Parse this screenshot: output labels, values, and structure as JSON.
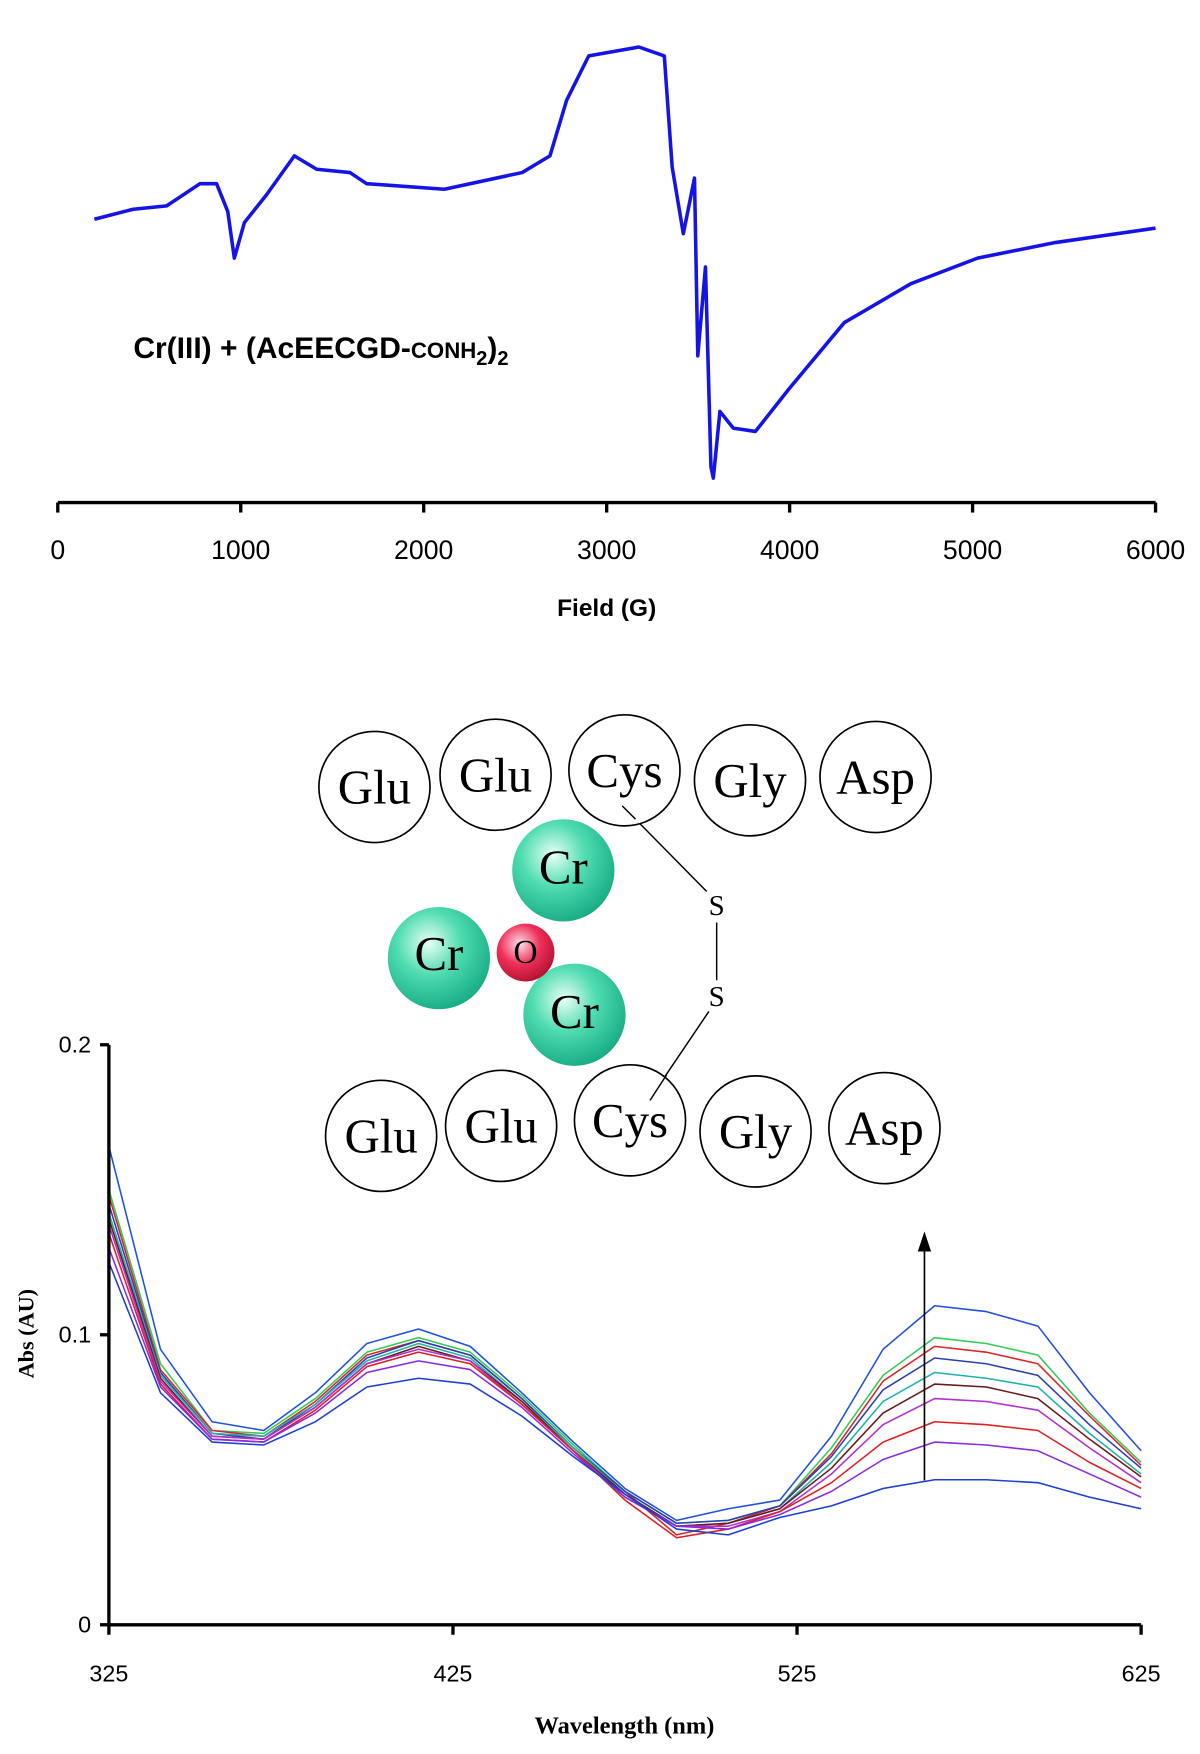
{
  "chart_data": [
    {
      "type": "line",
      "annotation": [
        "Cr(III) + (AcEECGD-",
        "CONH",
        "2",
        ")",
        "2"
      ],
      "xlabel": "Field (G)",
      "x": [
        200,
        413,
        595,
        777,
        868,
        929,
        965,
        1020,
        1141,
        1293,
        1415,
        1597,
        1688,
        2113,
        2538,
        2690,
        2781,
        2902,
        3176,
        3315,
        3358,
        3419,
        3480,
        3498,
        3540,
        3570,
        3583,
        3619,
        3692,
        3813,
        3995,
        4299,
        4663,
        5027,
        5452,
        6000
      ],
      "series": [
        {
          "color": "#1414e6",
          "values": [
            0,
            9,
            12,
            32,
            32,
            7,
            -35,
            -3,
            22,
            57,
            45,
            42,
            32,
            27,
            42,
            57,
            107,
            147,
            155,
            147,
            47,
            -13,
            37,
            -123,
            -43,
            -223,
            -233,
            -173,
            -188,
            -191,
            -153,
            -93,
            -58,
            -35,
            -21,
            -8
          ]
        }
      ],
      "xlim": [
        0,
        6000
      ],
      "xticks": [
        0,
        1000,
        2000,
        3000,
        4000,
        5000,
        6000
      ],
      "ylim": [
        -255,
        167
      ]
    },
    {
      "type": "line",
      "xlabel": "Wavelength (nm)",
      "ylabel": "Abs (AU)",
      "x": [
        325,
        340,
        355,
        370,
        385,
        400,
        415,
        430,
        445,
        460,
        475,
        490,
        505,
        520,
        535,
        550,
        565,
        580,
        595,
        610,
        625
      ],
      "series": [
        {
          "color": "#1c3fd6",
          "values": [
            0.125,
            0.08,
            0.063,
            0.062,
            0.07,
            0.082,
            0.085,
            0.083,
            0.072,
            0.058,
            0.045,
            0.033,
            0.031,
            0.037,
            0.041,
            0.047,
            0.05,
            0.05,
            0.049,
            0.044,
            0.04
          ]
        },
        {
          "color": "#8a2be2",
          "values": [
            0.13,
            0.082,
            0.064,
            0.063,
            0.073,
            0.087,
            0.091,
            0.088,
            0.075,
            0.059,
            0.044,
            0.034,
            0.033,
            0.038,
            0.046,
            0.057,
            0.063,
            0.062,
            0.06,
            0.052,
            0.044
          ]
        },
        {
          "color": "#e02020",
          "values": [
            0.135,
            0.083,
            0.064,
            0.063,
            0.074,
            0.089,
            0.094,
            0.09,
            0.076,
            0.06,
            0.043,
            0.03,
            0.033,
            0.039,
            0.049,
            0.063,
            0.07,
            0.069,
            0.067,
            0.056,
            0.047
          ]
        },
        {
          "color": "#b030d0",
          "values": [
            0.138,
            0.084,
            0.065,
            0.064,
            0.075,
            0.09,
            0.095,
            0.091,
            0.076,
            0.06,
            0.044,
            0.034,
            0.034,
            0.039,
            0.052,
            0.069,
            0.078,
            0.077,
            0.074,
            0.061,
            0.049
          ]
        },
        {
          "color": "#6b1a1a",
          "values": [
            0.14,
            0.085,
            0.065,
            0.064,
            0.075,
            0.09,
            0.096,
            0.091,
            0.077,
            0.06,
            0.045,
            0.034,
            0.035,
            0.04,
            0.054,
            0.073,
            0.083,
            0.082,
            0.078,
            0.064,
            0.051
          ]
        },
        {
          "color": "#20b2aa",
          "values": [
            0.142,
            0.086,
            0.066,
            0.065,
            0.076,
            0.091,
            0.097,
            0.092,
            0.077,
            0.061,
            0.045,
            0.034,
            0.035,
            0.04,
            0.056,
            0.077,
            0.087,
            0.085,
            0.082,
            0.066,
            0.052
          ]
        },
        {
          "color": "#2a3fb0",
          "values": [
            0.145,
            0.087,
            0.066,
            0.064,
            0.076,
            0.092,
            0.098,
            0.093,
            0.078,
            0.061,
            0.046,
            0.035,
            0.036,
            0.041,
            0.058,
            0.081,
            0.092,
            0.09,
            0.086,
            0.069,
            0.054
          ]
        },
        {
          "color": "#d8262a",
          "values": [
            0.148,
            0.088,
            0.067,
            0.065,
            0.077,
            0.093,
            0.098,
            0.093,
            0.078,
            0.061,
            0.046,
            0.031,
            0.035,
            0.041,
            0.059,
            0.084,
            0.096,
            0.094,
            0.09,
            0.072,
            0.055
          ]
        },
        {
          "color": "#33cc55",
          "values": [
            0.15,
            0.09,
            0.067,
            0.066,
            0.078,
            0.094,
            0.099,
            0.094,
            0.079,
            0.062,
            0.046,
            0.035,
            0.036,
            0.041,
            0.061,
            0.086,
            0.099,
            0.097,
            0.093,
            0.073,
            0.056
          ]
        },
        {
          "color": "#2050e0",
          "values": [
            0.165,
            0.095,
            0.07,
            0.067,
            0.08,
            0.097,
            0.102,
            0.096,
            0.08,
            0.063,
            0.047,
            0.036,
            0.04,
            0.043,
            0.065,
            0.095,
            0.11,
            0.108,
            0.103,
            0.08,
            0.06
          ]
        }
      ],
      "xlim": [
        325,
        625
      ],
      "xticks": [
        325,
        425,
        525,
        625
      ],
      "ylim": [
        0,
        0.2
      ],
      "yticks": [
        0,
        0.1,
        0.2
      ]
    }
  ],
  "diagram": {
    "top_residues": [
      "Glu",
      "Glu",
      "Cys",
      "Gly",
      "Asp"
    ],
    "bottom_residues": [
      "Glu",
      "Glu",
      "Cys",
      "Gly",
      "Asp"
    ],
    "chromium": [
      "Cr",
      "Cr",
      "Cr"
    ],
    "oxygen": "O",
    "sulfur": [
      "S",
      "S"
    ]
  }
}
